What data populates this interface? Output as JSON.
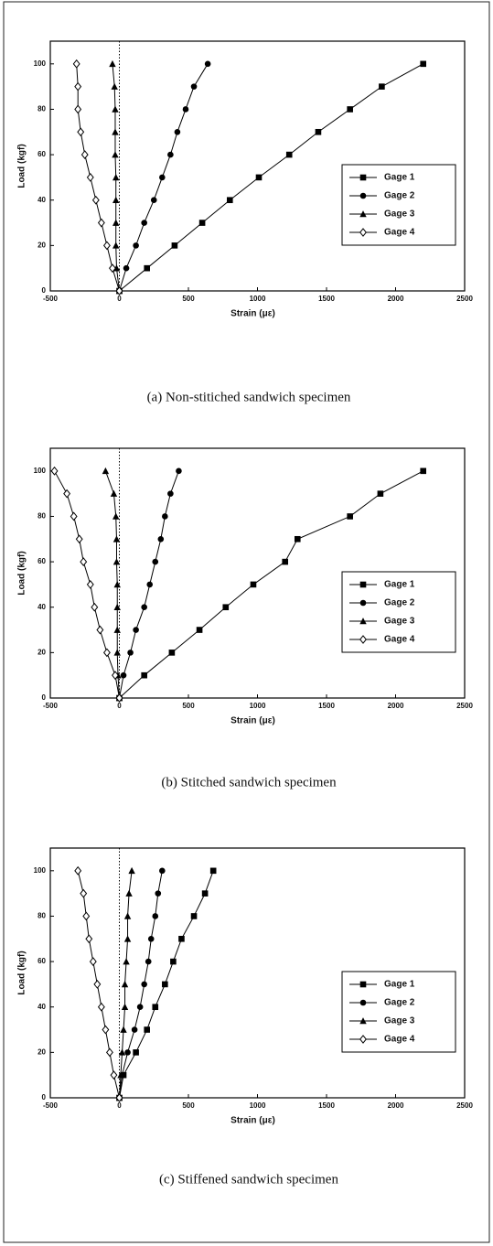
{
  "chart_data": [
    {
      "type": "line",
      "caption": "(a) Non-stitiched sandwich specimen",
      "x_label": "Strain (με)",
      "y_label": "Load (kgf)",
      "xlim": [
        -500,
        2500
      ],
      "xticks": [
        -500,
        0,
        500,
        1000,
        1500,
        2000,
        2500
      ],
      "ylim": [
        0,
        110
      ],
      "yticks": [
        0,
        20,
        40,
        60,
        80,
        100
      ],
      "vline": 0,
      "legend": "lower right",
      "series": [
        {
          "name": "Gage 1",
          "color": "#000000",
          "marker": "square",
          "x": [
            0,
            200,
            400,
            600,
            800,
            1010,
            1230,
            1440,
            1670,
            1900,
            2200
          ],
          "values": [
            0,
            10,
            20,
            30,
            40,
            50,
            60,
            70,
            80,
            90,
            100
          ]
        },
        {
          "name": "Gage 2",
          "color": "#000000",
          "marker": "circle",
          "x": [
            0,
            50,
            120,
            180,
            250,
            310,
            370,
            420,
            480,
            540,
            640
          ],
          "values": [
            0,
            10,
            20,
            30,
            40,
            50,
            60,
            70,
            80,
            90,
            100
          ]
        },
        {
          "name": "Gage 3",
          "color": "#000000",
          "marker": "triangle",
          "x": [
            0,
            -20,
            -25,
            -25,
            -25,
            -25,
            -30,
            -30,
            -30,
            -35,
            -50
          ],
          "values": [
            0,
            10,
            20,
            30,
            40,
            50,
            60,
            70,
            80,
            90,
            100
          ]
        },
        {
          "name": "Gage 4",
          "color": "#000000",
          "marker": "diamond",
          "x": [
            0,
            -50,
            -90,
            -130,
            -170,
            -210,
            -250,
            -280,
            -300,
            -300,
            -310
          ],
          "values": [
            0,
            10,
            20,
            30,
            40,
            50,
            60,
            70,
            80,
            90,
            100
          ]
        }
      ]
    },
    {
      "type": "line",
      "caption": "(b) Stitched sandwich specimen",
      "x_label": "Strain (με)",
      "y_label": "Load (kgf)",
      "xlim": [
        -500,
        2500
      ],
      "xticks": [
        -500,
        0,
        500,
        1000,
        1500,
        2000,
        2500
      ],
      "ylim": [
        0,
        110
      ],
      "yticks": [
        0,
        20,
        40,
        60,
        80,
        100
      ],
      "vline": 0,
      "legend": "lower right",
      "series": [
        {
          "name": "Gage 1",
          "color": "#000000",
          "marker": "square",
          "x": [
            0,
            180,
            380,
            580,
            770,
            970,
            1200,
            1290,
            1670,
            1890,
            2200
          ],
          "values": [
            0,
            10,
            20,
            30,
            40,
            50,
            60,
            70,
            80,
            90,
            100
          ]
        },
        {
          "name": "Gage 2",
          "color": "#000000",
          "marker": "circle",
          "x": [
            0,
            30,
            80,
            120,
            180,
            220,
            260,
            300,
            330,
            370,
            430
          ],
          "values": [
            0,
            10,
            20,
            30,
            40,
            50,
            60,
            70,
            80,
            90,
            100
          ]
        },
        {
          "name": "Gage 3",
          "color": "#000000",
          "marker": "triangle",
          "x": [
            0,
            -10,
            -15,
            -15,
            -15,
            -15,
            -20,
            -20,
            -25,
            -40,
            -100
          ],
          "values": [
            0,
            10,
            20,
            30,
            40,
            50,
            60,
            70,
            80,
            90,
            100
          ]
        },
        {
          "name": "Gage 4",
          "color": "#000000",
          "marker": "diamond",
          "x": [
            0,
            -30,
            -90,
            -140,
            -180,
            -210,
            -260,
            -290,
            -330,
            -380,
            -470
          ],
          "values": [
            0,
            10,
            20,
            30,
            40,
            50,
            60,
            70,
            80,
            90,
            100
          ]
        }
      ]
    },
    {
      "type": "line",
      "caption": "(c) Stiffened sandwich specimen",
      "x_label": "Strain (με)",
      "y_label": "Load (kgf)",
      "xlim": [
        -500,
        2500
      ],
      "xticks": [
        -500,
        0,
        500,
        1000,
        1500,
        2000,
        2500
      ],
      "ylim": [
        0,
        110
      ],
      "yticks": [
        0,
        20,
        40,
        60,
        80,
        100
      ],
      "vline": 0,
      "legend": "lower right",
      "series": [
        {
          "name": "Gage 1",
          "color": "#000000",
          "marker": "square",
          "x": [
            0,
            30,
            120,
            200,
            260,
            330,
            390,
            450,
            540,
            620,
            680
          ],
          "values": [
            0,
            10,
            20,
            30,
            40,
            50,
            60,
            70,
            80,
            90,
            100
          ]
        },
        {
          "name": "Gage 2",
          "color": "#000000",
          "marker": "circle",
          "x": [
            0,
            20,
            60,
            110,
            150,
            180,
            210,
            230,
            260,
            280,
            310
          ],
          "values": [
            0,
            10,
            20,
            30,
            40,
            50,
            60,
            70,
            80,
            90,
            100
          ]
        },
        {
          "name": "Gage 3",
          "color": "#000000",
          "marker": "triangle",
          "x": [
            0,
            10,
            20,
            30,
            40,
            40,
            50,
            60,
            60,
            70,
            90
          ],
          "values": [
            0,
            10,
            20,
            30,
            40,
            50,
            60,
            70,
            80,
            90,
            100
          ]
        },
        {
          "name": "Gage 4",
          "color": "#000000",
          "marker": "diamond",
          "x": [
            0,
            -40,
            -70,
            -100,
            -130,
            -160,
            -190,
            -220,
            -240,
            -260,
            -300
          ],
          "values": [
            0,
            10,
            20,
            30,
            40,
            50,
            60,
            70,
            80,
            90,
            100
          ]
        }
      ]
    }
  ]
}
